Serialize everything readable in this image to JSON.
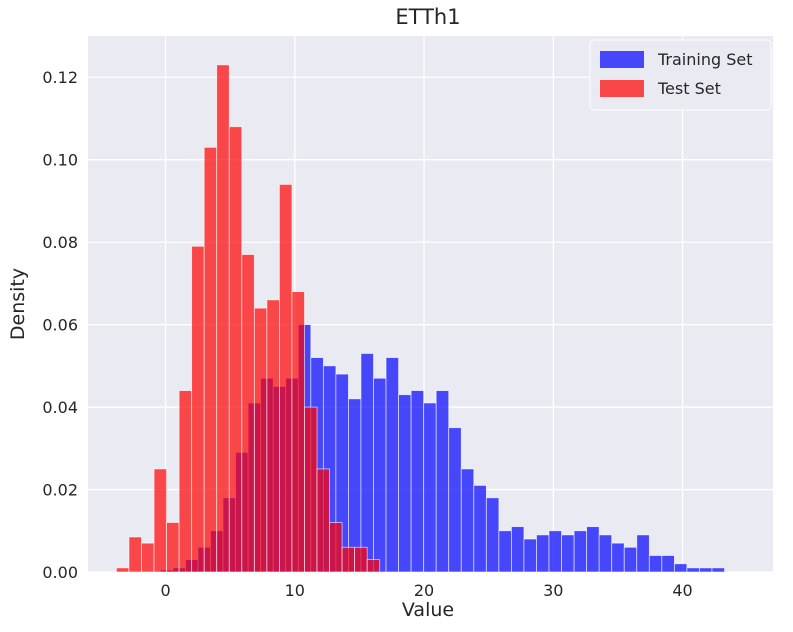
{
  "chart_data": {
    "type": "bar",
    "subtype": "overlaid-histogram",
    "title": "ETTh1",
    "xlabel": "Value",
    "ylabel": "Density",
    "xlim": [
      -6,
      47
    ],
    "ylim": [
      0,
      0.13
    ],
    "xticks": [
      0,
      10,
      20,
      30,
      40
    ],
    "yticks": [
      0.0,
      0.02,
      0.04,
      0.06,
      0.08,
      0.1,
      0.12
    ],
    "ytick_labels": [
      "0.00",
      "0.02",
      "0.04",
      "0.06",
      "0.08",
      "0.10",
      "0.12"
    ],
    "grid": true,
    "legend_position": "top-right",
    "bin_width": 0.97,
    "series": [
      {
        "name": "Training Set",
        "color": "#0000ff",
        "opacity": 0.7,
        "bin_start": -0.4,
        "values": [
          0.0005,
          0.001,
          0.003,
          0.006,
          0.01,
          0.018,
          0.029,
          0.041,
          0.047,
          0.045,
          0.047,
          0.06,
          0.052,
          0.05,
          0.048,
          0.042,
          0.053,
          0.047,
          0.052,
          0.043,
          0.044,
          0.041,
          0.044,
          0.035,
          0.025,
          0.021,
          0.018,
          0.01,
          0.011,
          0.008,
          0.009,
          0.01,
          0.009,
          0.01,
          0.011,
          0.009,
          0.007,
          0.006,
          0.009,
          0.004,
          0.004,
          0.002,
          0.001,
          0.001,
          0.001
        ]
      },
      {
        "name": "Test Set",
        "color": "#ff0000",
        "opacity": 0.7,
        "bin_start": -3.8,
        "values": [
          0.001,
          0.0085,
          0.007,
          0.025,
          0.012,
          0.044,
          0.079,
          0.103,
          0.123,
          0.108,
          0.077,
          0.064,
          0.066,
          0.094,
          0.068,
          0.04,
          0.025,
          0.012,
          0.006,
          0.006,
          0.003
        ]
      }
    ]
  },
  "colors": {
    "plot_background": "#eaeaf2",
    "grid": "#ffffff",
    "text": "#262626"
  }
}
